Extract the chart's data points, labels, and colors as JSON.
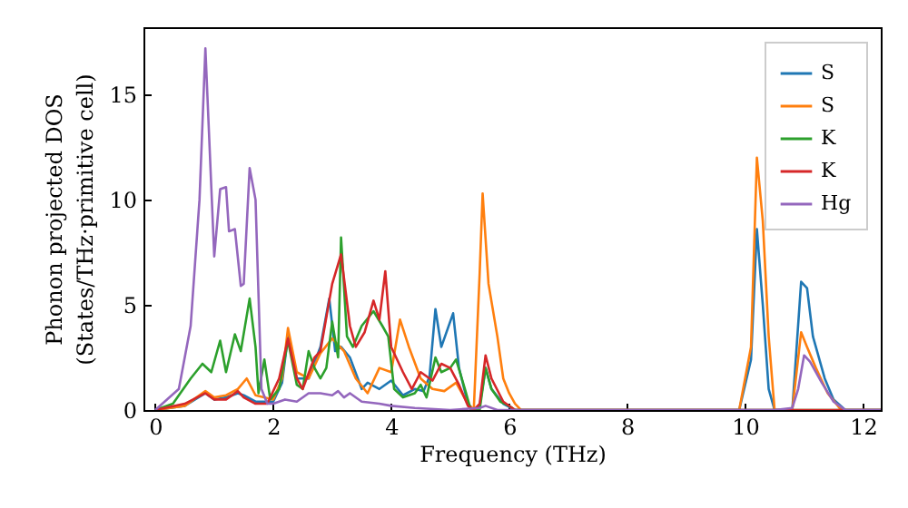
{
  "chart_data": {
    "type": "line",
    "xlabel": "Frequency (THz)",
    "ylabel": "Phonon projected DOS\n(States/THz·primitive cell)",
    "xlim": [
      -0.2,
      12.3
    ],
    "xticks": [
      0,
      2,
      4,
      6,
      8,
      10,
      12
    ],
    "ylim": [
      0,
      18.2
    ],
    "yticks": [
      0,
      5,
      10,
      15
    ],
    "grid": false,
    "legend": "top right",
    "series": [
      {
        "name": "S",
        "color": "#1f77b4",
        "x": [
          0,
          0.5,
          0.85,
          1.0,
          1.2,
          1.4,
          1.5,
          1.7,
          2.0,
          2.15,
          2.25,
          2.4,
          2.6,
          2.8,
          2.95,
          3.05,
          3.15,
          3.3,
          3.5,
          3.6,
          3.8,
          4.0,
          4.2,
          4.4,
          4.55,
          4.65,
          4.75,
          4.85,
          4.95,
          5.05,
          5.15,
          5.3,
          5.4,
          5.5,
          5.6,
          5.7,
          5.9,
          6.1,
          9.9,
          10.1,
          10.2,
          10.3,
          10.4,
          10.5,
          10.8,
          10.95,
          11.05,
          11.15,
          11.35,
          11.5,
          11.7,
          12.3
        ],
        "values": [
          0,
          0.2,
          0.8,
          0.5,
          0.6,
          0.8,
          0.7,
          0.4,
          0.4,
          1.3,
          3.5,
          1.5,
          1.5,
          3.0,
          5.3,
          2.8,
          3.0,
          2.5,
          1.0,
          1.3,
          1.0,
          1.4,
          0.7,
          1.0,
          0.9,
          1.6,
          4.8,
          3.0,
          3.8,
          4.6,
          2.0,
          0.3,
          0,
          0.2,
          2.0,
          1.0,
          0.3,
          0,
          0,
          2.4,
          8.6,
          5.0,
          1.0,
          0,
          0,
          6.1,
          5.8,
          3.5,
          1.5,
          0.5,
          0,
          0
        ]
      },
      {
        "name": "S",
        "color": "#ff7f0e",
        "x": [
          0,
          0.5,
          0.85,
          1.0,
          1.2,
          1.4,
          1.55,
          1.7,
          2.0,
          2.15,
          2.25,
          2.4,
          2.6,
          2.8,
          3.0,
          3.2,
          3.4,
          3.6,
          3.8,
          4.0,
          4.15,
          4.3,
          4.5,
          4.7,
          4.9,
          5.1,
          5.3,
          5.4,
          5.5,
          5.55,
          5.65,
          5.8,
          5.9,
          6.0,
          6.1,
          6.2,
          9.9,
          10.1,
          10.2,
          10.3,
          10.4,
          10.5,
          10.8,
          10.95,
          11.05,
          11.2,
          11.4,
          11.6,
          11.7,
          12.3
        ],
        "values": [
          0,
          0.2,
          0.9,
          0.6,
          0.7,
          1.0,
          1.5,
          0.7,
          0.5,
          1.5,
          3.9,
          1.8,
          1.5,
          2.7,
          3.4,
          2.8,
          1.5,
          0.8,
          2.0,
          1.8,
          4.3,
          3.0,
          1.5,
          1.0,
          0.9,
          1.3,
          0.3,
          0,
          6.5,
          10.3,
          6.0,
          3.5,
          1.5,
          0.8,
          0.3,
          0,
          0,
          3.0,
          12.0,
          9.0,
          3.5,
          0,
          0,
          3.7,
          3.0,
          2.0,
          0.8,
          0.1,
          0,
          0
        ]
      },
      {
        "name": "K",
        "color": "#2ca02c",
        "x": [
          0,
          0.3,
          0.6,
          0.8,
          0.95,
          1.1,
          1.2,
          1.35,
          1.45,
          1.6,
          1.7,
          1.75,
          1.85,
          1.95,
          2.1,
          2.25,
          2.4,
          2.5,
          2.6,
          2.7,
          2.8,
          2.9,
          3.0,
          3.1,
          3.15,
          3.25,
          3.35,
          3.5,
          3.7,
          3.85,
          3.95,
          4.05,
          4.2,
          4.4,
          4.5,
          4.6,
          4.75,
          4.85,
          5.0,
          5.1,
          5.25,
          5.35,
          5.5,
          5.6,
          5.7,
          5.85,
          6.0,
          6.1,
          12.3
        ],
        "values": [
          0,
          0.3,
          1.5,
          2.2,
          1.8,
          3.3,
          1.8,
          3.6,
          2.8,
          5.3,
          3.0,
          0.8,
          2.4,
          0.5,
          1.0,
          3.3,
          1.2,
          1.0,
          2.8,
          2.0,
          1.5,
          2.0,
          4.2,
          2.5,
          8.2,
          3.5,
          3.0,
          4.0,
          4.7,
          4.0,
          3.5,
          1.0,
          0.6,
          0.8,
          1.2,
          0.6,
          2.5,
          1.8,
          2.0,
          2.4,
          1.0,
          0,
          0,
          2.0,
          1.0,
          0.4,
          0.2,
          0,
          0
        ]
      },
      {
        "name": "K",
        "color": "#d62728",
        "x": [
          0,
          0.5,
          0.85,
          1.0,
          1.2,
          1.4,
          1.5,
          1.7,
          1.9,
          2.1,
          2.25,
          2.4,
          2.5,
          2.7,
          2.8,
          3.0,
          3.15,
          3.3,
          3.4,
          3.55,
          3.7,
          3.8,
          3.9,
          4.0,
          4.2,
          4.35,
          4.5,
          4.7,
          4.85,
          5.0,
          5.15,
          5.3,
          5.4,
          5.5,
          5.6,
          5.7,
          5.9,
          6.1,
          12.3
        ],
        "values": [
          0,
          0.3,
          0.8,
          0.5,
          0.5,
          0.9,
          0.6,
          0.3,
          0.3,
          1.5,
          3.4,
          1.5,
          1.0,
          2.5,
          2.8,
          6.0,
          7.4,
          4.0,
          3.0,
          3.7,
          5.2,
          4.3,
          6.6,
          3.0,
          1.8,
          1.0,
          1.8,
          1.4,
          2.2,
          2.0,
          1.2,
          0.2,
          0,
          0.3,
          2.6,
          1.5,
          0.4,
          0,
          0
        ]
      },
      {
        "name": "Hg",
        "color": "#9467bd",
        "x": [
          0,
          0.4,
          0.6,
          0.75,
          0.85,
          1.0,
          1.1,
          1.2,
          1.25,
          1.35,
          1.45,
          1.5,
          1.6,
          1.7,
          1.8,
          1.9,
          2.0,
          2.2,
          2.4,
          2.6,
          2.8,
          3.0,
          3.1,
          3.2,
          3.3,
          3.5,
          3.8,
          4.0,
          4.4,
          5.0,
          5.5,
          5.6,
          5.8,
          10.5,
          10.8,
          10.9,
          11.0,
          11.1,
          11.3,
          11.5,
          11.7,
          12.3
        ],
        "values": [
          0,
          1.0,
          4.0,
          10.0,
          17.2,
          7.3,
          10.5,
          10.6,
          8.5,
          8.6,
          5.9,
          6.0,
          11.5,
          10.0,
          1.0,
          0.3,
          0.3,
          0.5,
          0.4,
          0.8,
          0.8,
          0.7,
          0.9,
          0.6,
          0.8,
          0.4,
          0.3,
          0.2,
          0.1,
          0,
          0.1,
          0.2,
          0,
          0,
          0.1,
          1.0,
          2.6,
          2.3,
          1.3,
          0.4,
          0,
          0
        ]
      }
    ]
  }
}
